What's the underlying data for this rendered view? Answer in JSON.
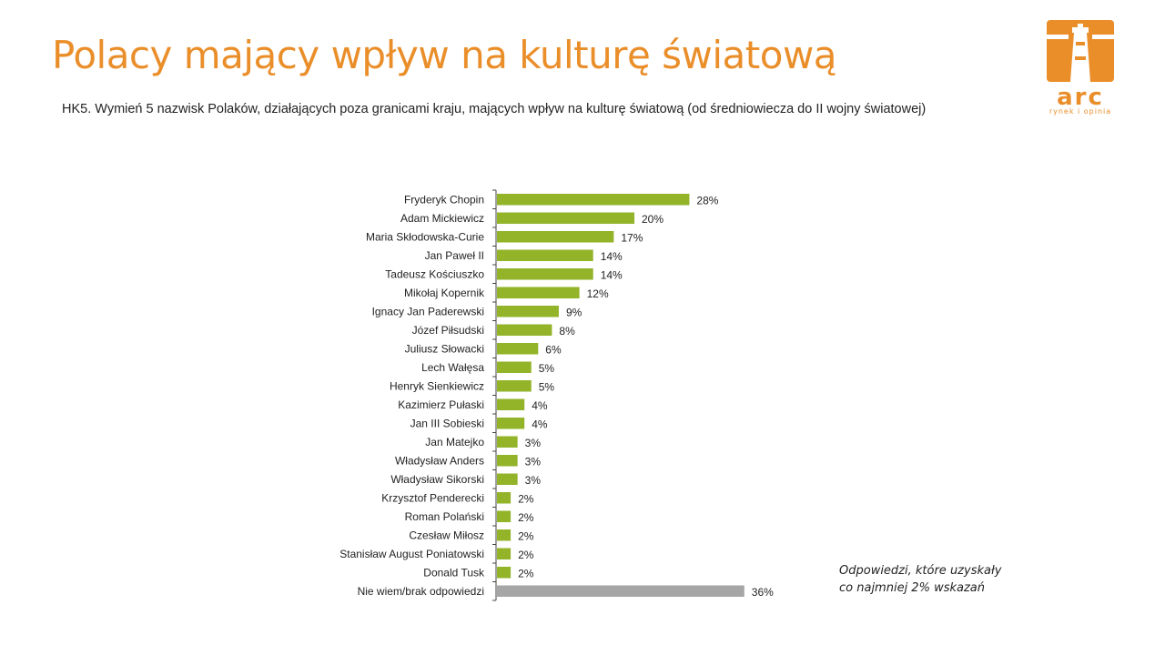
{
  "header": {
    "title": "Polacy mający wpływ na kulturę światową",
    "subtitle": "HK5. Wymień 5 nazwisk Polaków, działających  poza granicami kraju, mających wpływ na kulturę światową (od średniowiecza do II wojny światowej)"
  },
  "logo": {
    "word": "arc",
    "tagline": "rynek i opinia",
    "color": "#ea8e2a"
  },
  "note": {
    "line1": "Odpowiedzi, które uzyskały",
    "line2": "co najmniej 2% wskazań"
  },
  "chart_data": {
    "type": "bar",
    "orientation": "horizontal",
    "categories": [
      "Fryderyk Chopin",
      "Adam Mickiewicz",
      "Maria Skłodowska-Curie",
      "Jan Paweł II",
      "Tadeusz Kościuszko",
      "Mikołaj Kopernik",
      "Ignacy Jan Paderewski",
      "Józef Piłsudski",
      "Juliusz Słowacki",
      "Lech Wałęsa",
      "Henryk Sienkiewicz",
      "Kazimierz Pułaski",
      "Jan III Sobieski",
      "Jan Matejko",
      "Władysław Anders",
      "Władysław Sikorski",
      "Krzysztof Penderecki",
      "Roman Polański",
      "Czesław Miłosz",
      "Stanisław August Poniatowski",
      "Donald Tusk",
      "Nie wiem/brak odpowiedzi"
    ],
    "values": [
      28,
      20,
      17,
      14,
      14,
      12,
      9,
      8,
      6,
      5,
      5,
      4,
      4,
      3,
      3,
      3,
      2,
      2,
      2,
      2,
      2,
      36
    ],
    "value_labels": [
      "28%",
      "20%",
      "17%",
      "14%",
      "14%",
      "12%",
      "9%",
      "8%",
      "6%",
      "5%",
      "5%",
      "4%",
      "4%",
      "3%",
      "3%",
      "3%",
      "2%",
      "2%",
      "2%",
      "2%",
      "2%",
      "36%"
    ],
    "xlim": [
      0,
      36
    ],
    "bar_color": "#93b329",
    "highlight_color": "#a6a6a6",
    "grid": false,
    "legend": false
  }
}
